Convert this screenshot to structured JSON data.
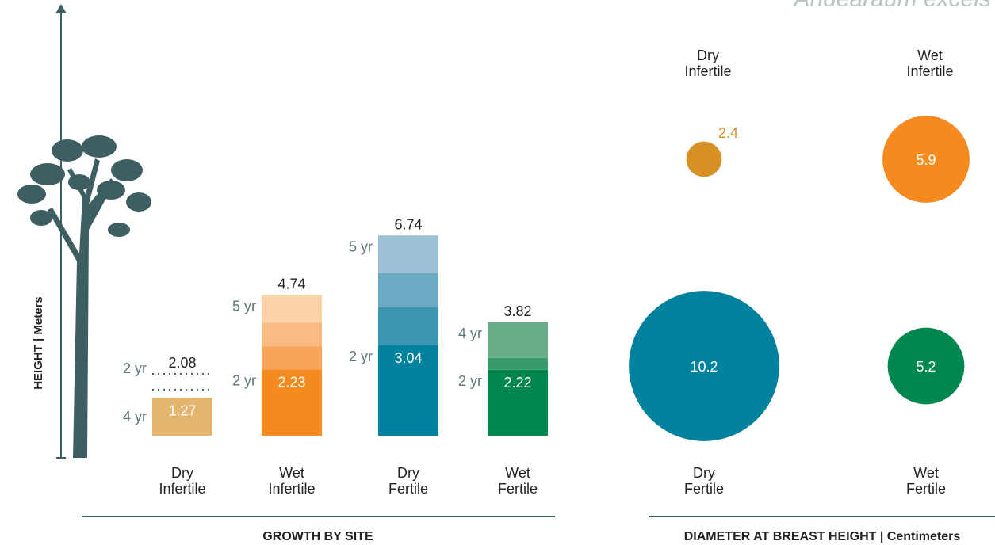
{
  "chart_data": [
    {
      "type": "stacked-bar",
      "y_label": "HEIGHT  |  Meters",
      "x_label": "GROWTH BY SITE",
      "ylim": [
        0,
        14.4
      ],
      "bars": [
        {
          "category": [
            "Dry",
            "Infertile"
          ],
          "segments": [
            1.27
          ],
          "colors": [
            "#e3b56f"
          ],
          "year_labels": [
            "4 yr"
          ],
          "dotted_levels": [
            1.55,
            2.08
          ],
          "dotted_label": "2 yr",
          "total": 2.08
        },
        {
          "category": [
            "Wet",
            "Infertile"
          ],
          "segments": [
            2.23,
            0.77,
            0.8,
            0.94
          ],
          "colors": [
            "#f58a1f",
            "#f7a35a",
            "#f9bb82",
            "#fcd3a6"
          ],
          "year_labels": [
            "2 yr",
            null,
            null,
            "5 yr"
          ],
          "total": 4.74
        },
        {
          "category": [
            "Dry",
            "Fertile"
          ],
          "segments": [
            3.04,
            1.28,
            1.15,
            1.27
          ],
          "colors": [
            "#00829f",
            "#3a96b0",
            "#6aaac2",
            "#9dc1d4"
          ],
          "year_labels": [
            "2 yr",
            null,
            null,
            "5 yr"
          ],
          "total": 6.74
        },
        {
          "category": [
            "Wet",
            "Fertile"
          ],
          "segments": [
            2.22,
            0.4,
            1.2
          ],
          "colors": [
            "#00874f",
            "#3b9a69",
            "#69ad88"
          ],
          "year_labels": [
            "2 yr",
            null,
            "4 yr"
          ],
          "total": 3.82
        }
      ]
    },
    {
      "type": "bubble",
      "title": "Andearaum excels",
      "x_label": "DIAMETER AT BREAST HEIGHT | Centimeters",
      "categories": [
        [
          "Dry",
          "Infertile"
        ],
        [
          "Wet",
          "Infertile"
        ],
        [
          "Dry",
          "Fertile"
        ],
        [
          "Wet",
          "Fertile"
        ]
      ],
      "values": [
        2.4,
        5.9,
        10.2,
        5.2
      ],
      "colors": [
        "#d68f22",
        "#f58a1f",
        "#00829f",
        "#00874f"
      ]
    }
  ]
}
